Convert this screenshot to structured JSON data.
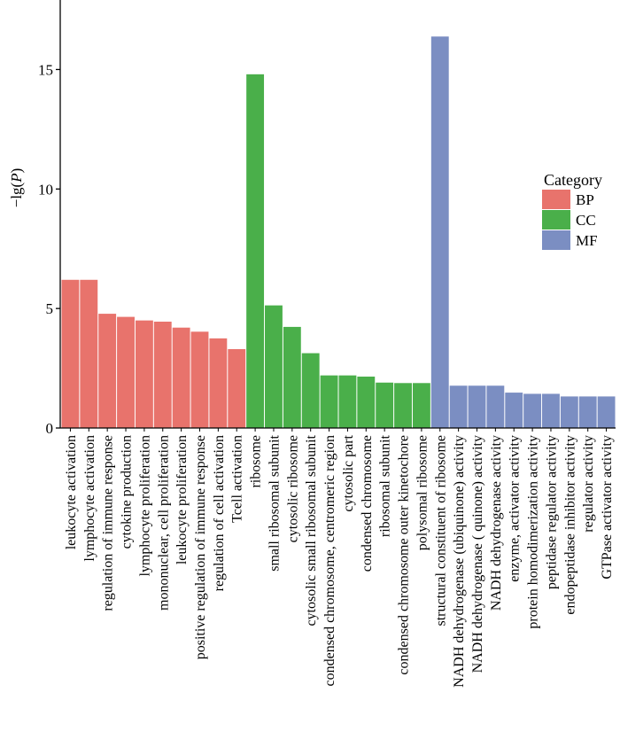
{
  "chart_data": {
    "type": "bar",
    "title": "",
    "xlabel": "",
    "ylabel": "−lg(P)",
    "ylabel_prefix": "−lg(",
    "ylabel_italic": "P",
    "ylabel_suffix": ")",
    "ylim": [
      0,
      17.1
    ],
    "yticks": [
      0,
      5,
      10,
      15
    ],
    "grid": false,
    "legend": {
      "title": "Category",
      "position": "right",
      "entries": [
        {
          "label": "BP",
          "color": "#E8736C"
        },
        {
          "label": "CC",
          "color": "#4AAF4A"
        },
        {
          "label": "MF",
          "color": "#7B8EC2"
        }
      ]
    },
    "categories": [
      "leukocyte activation",
      "lymphocyte activation",
      "regulation of immune response",
      "cytokine production",
      "lymphocyte proliferation",
      "mononuclear, cell proliferation",
      "leukocyte proliferation",
      "positive regulation of immune response",
      "regulation of cell activation",
      "Tcell activation",
      "ribosome",
      "small ribosomal subunit",
      "cytosolic ribosome",
      "cytosolic small ribosomal subunit",
      "condensed chromosome, centromeric region",
      "cytosolic part",
      "condensed chromosome",
      "ribosomal subunit",
      "condensed chromosome outer kinetochore",
      "polysomal ribosome",
      "structural constituent of ribosome",
      "NADH dehydrogenase (ubiquinone) activity",
      "NADH dehydrogenase ( quinone) activity",
      "NADH dehydrogenase activity",
      "enzyme, activator activity",
      "protein homodimerization activity",
      "peptidase regulator activity",
      "endopeptidase inhibitor activity",
      "regulator activity",
      "GTPase activator activity"
    ],
    "values": [
      6.2,
      6.2,
      4.78,
      4.65,
      4.5,
      4.45,
      4.2,
      4.03,
      3.75,
      3.3,
      14.8,
      5.13,
      4.23,
      3.13,
      2.2,
      2.2,
      2.15,
      1.9,
      1.88,
      1.88,
      16.38,
      1.77,
      1.77,
      1.77,
      1.48,
      1.43,
      1.43,
      1.32,
      1.32,
      1.32
    ],
    "groups": [
      "BP",
      "BP",
      "BP",
      "BP",
      "BP",
      "BP",
      "BP",
      "BP",
      "BP",
      "BP",
      "CC",
      "CC",
      "CC",
      "CC",
      "CC",
      "CC",
      "CC",
      "CC",
      "CC",
      "CC",
      "MF",
      "MF",
      "MF",
      "MF",
      "MF",
      "MF",
      "MF",
      "MF",
      "MF",
      "MF"
    ]
  }
}
